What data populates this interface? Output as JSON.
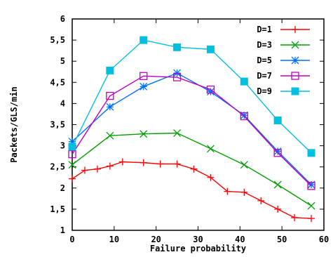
{
  "chart_data": {
    "type": "line",
    "title": "",
    "xlabel": "Failure probability",
    "ylabel": "Packets/GLS/min",
    "xlim": [
      0,
      60
    ],
    "ylim": [
      1,
      6
    ],
    "x_ticks": [
      0,
      10,
      20,
      30,
      40,
      50,
      60
    ],
    "x_tick_labels": [
      "0",
      "10",
      "20",
      "30",
      "40",
      "50",
      "60"
    ],
    "y_ticks": [
      1,
      1.5,
      2,
      2.5,
      3,
      3.5,
      4,
      4.5,
      5,
      5.5,
      6
    ],
    "y_tick_labels": [
      "1",
      "1,5",
      "2",
      "2,5",
      "3",
      "3,5",
      "4",
      "4,5",
      "5",
      "5,5",
      "6"
    ],
    "grid": false,
    "legend_position": "top-right",
    "series": [
      {
        "name": "D=1",
        "color": "#ff0000",
        "marker": "plus",
        "points": [
          [
            0,
            2.22
          ],
          [
            3,
            2.42
          ],
          [
            6,
            2.45
          ],
          [
            9,
            2.52
          ],
          [
            12,
            2.62
          ],
          [
            17,
            2.6
          ],
          [
            21,
            2.57
          ],
          [
            25,
            2.57
          ],
          [
            29,
            2.45
          ],
          [
            33,
            2.25
          ],
          [
            37,
            1.92
          ],
          [
            41,
            1.9
          ],
          [
            45,
            1.7
          ],
          [
            49,
            1.5
          ],
          [
            53,
            1.3
          ],
          [
            57,
            1.28
          ]
        ]
      },
      {
        "name": "D=3",
        "color": "#00a000",
        "marker": "x",
        "points": [
          [
            0,
            2.55
          ],
          [
            9,
            3.24
          ],
          [
            17,
            3.28
          ],
          [
            25,
            3.3
          ],
          [
            33,
            2.93
          ],
          [
            41,
            2.55
          ],
          [
            49,
            2.08
          ],
          [
            57,
            1.58
          ]
        ]
      },
      {
        "name": "D=5",
        "color": "#0070ff",
        "marker": "star",
        "points": [
          [
            0,
            3.1
          ],
          [
            9,
            3.92
          ],
          [
            17,
            4.4
          ],
          [
            25,
            4.72
          ],
          [
            33,
            4.28
          ],
          [
            41,
            3.72
          ],
          [
            49,
            2.87
          ],
          [
            57,
            2.08
          ]
        ]
      },
      {
        "name": "D=7",
        "color": "#c000c0",
        "marker": "open-square",
        "points": [
          [
            0,
            2.8
          ],
          [
            9,
            4.18
          ],
          [
            17,
            4.65
          ],
          [
            25,
            4.62
          ],
          [
            33,
            4.33
          ],
          [
            41,
            3.7
          ],
          [
            49,
            2.83
          ],
          [
            57,
            2.05
          ]
        ]
      },
      {
        "name": "D=9",
        "color": "#00c0e0",
        "marker": "filled-square",
        "points": [
          [
            0,
            2.98
          ],
          [
            9,
            4.78
          ],
          [
            17,
            5.5
          ],
          [
            25,
            5.33
          ],
          [
            33,
            5.28
          ],
          [
            41,
            4.52
          ],
          [
            49,
            3.6
          ],
          [
            57,
            2.83
          ]
        ]
      }
    ]
  }
}
